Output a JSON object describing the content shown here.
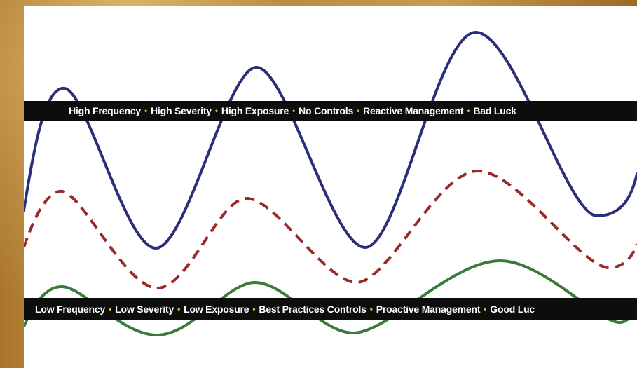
{
  "diagram": {
    "top_band_items": [
      "High Frequency",
      "High Severity",
      "High Exposure",
      "No Controls",
      "Reactive Management",
      "Bad Luck"
    ],
    "bottom_band_items": [
      "Low Frequency",
      "Low Severity",
      "Low Exposure",
      "Best Practices Controls",
      "Proactive Management",
      "Good Luc"
    ],
    "separator": "•",
    "colors": {
      "high_wave": "#2b2f7a",
      "mid_wave": "#9a2a2a",
      "low_wave": "#3b7a3b",
      "band": "#0d0d0d",
      "separator": "#e5b23a"
    }
  }
}
